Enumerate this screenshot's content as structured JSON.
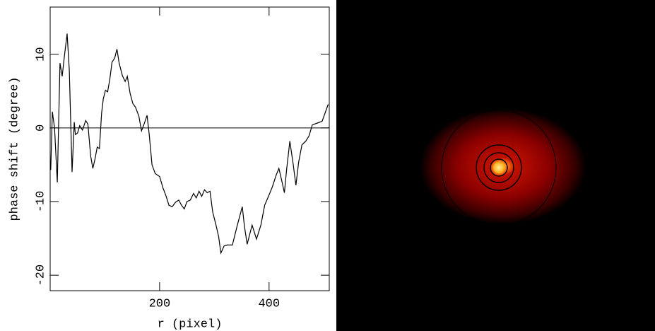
{
  "chart_data": {
    "type": "line",
    "x_label": "r (pixel)",
    "y_label": "phase shift (degree)",
    "x": [
      1,
      4,
      8,
      13,
      18,
      22,
      26,
      31,
      35,
      40,
      44,
      46,
      50,
      54,
      59,
      65,
      69,
      74,
      78,
      82,
      86,
      90,
      94,
      97,
      101,
      105,
      109,
      113,
      118,
      122,
      126,
      132,
      137,
      141,
      146,
      151,
      156,
      162,
      167,
      172,
      177,
      181,
      186,
      192,
      200,
      206,
      212,
      217,
      223,
      229,
      235,
      240,
      245,
      250,
      256,
      262,
      267,
      272,
      277,
      282,
      287,
      292,
      297,
      303,
      308,
      312,
      318,
      324,
      333,
      342,
      351,
      355,
      360,
      369,
      377,
      385,
      392,
      400,
      406,
      413,
      418,
      423,
      428,
      432,
      438,
      444,
      449,
      454,
      460,
      467,
      473,
      479,
      490,
      497,
      508
    ],
    "values": [
      -5.7,
      2.2,
      0,
      -7.4,
      8.8,
      7,
      9.7,
      12.8,
      7.8,
      -6,
      0.8,
      -0.9,
      -0.7,
      0.3,
      -0.3,
      1,
      0.5,
      -3.8,
      -5.5,
      -4.2,
      -2.6,
      -2.8,
      2,
      3.9,
      5.1,
      4.9,
      6.6,
      8.9,
      9.5,
      10.7,
      8.8,
      7.1,
      6.3,
      7,
      4.7,
      3.3,
      2.8,
      1.6,
      -0.4,
      0.6,
      1.7,
      -0.9,
      -5,
      -6.2,
      -6.6,
      -8.1,
      -9.3,
      -10.5,
      -10.7,
      -10.1,
      -9.8,
      -10.5,
      -11,
      -10,
      -9.8,
      -8.9,
      -9.5,
      -8.6,
      -9.3,
      -8.4,
      -8.8,
      -8.6,
      -11.4,
      -13.2,
      -14.8,
      -17,
      -16,
      -15.9,
      -15.9,
      -13.2,
      -10.7,
      -13.4,
      -15.8,
      -13.2,
      -15.1,
      -13.2,
      -10.5,
      -9.1,
      -8,
      -6.4,
      -5.5,
      -7.1,
      -8.8,
      -5.7,
      -1.8,
      -4.9,
      -7.8,
      -4.7,
      -2.3,
      -1.8,
      -1.1,
      0.4,
      0.7,
      0.9,
      3.2
    ],
    "color": "#000000",
    "reference_line": 0,
    "xlim": [
      0,
      510
    ],
    "ylim": [
      -22.1,
      16.4
    ],
    "xticks": [
      200,
      400
    ],
    "yticks": [
      -20,
      -10,
      0,
      10
    ]
  }
}
